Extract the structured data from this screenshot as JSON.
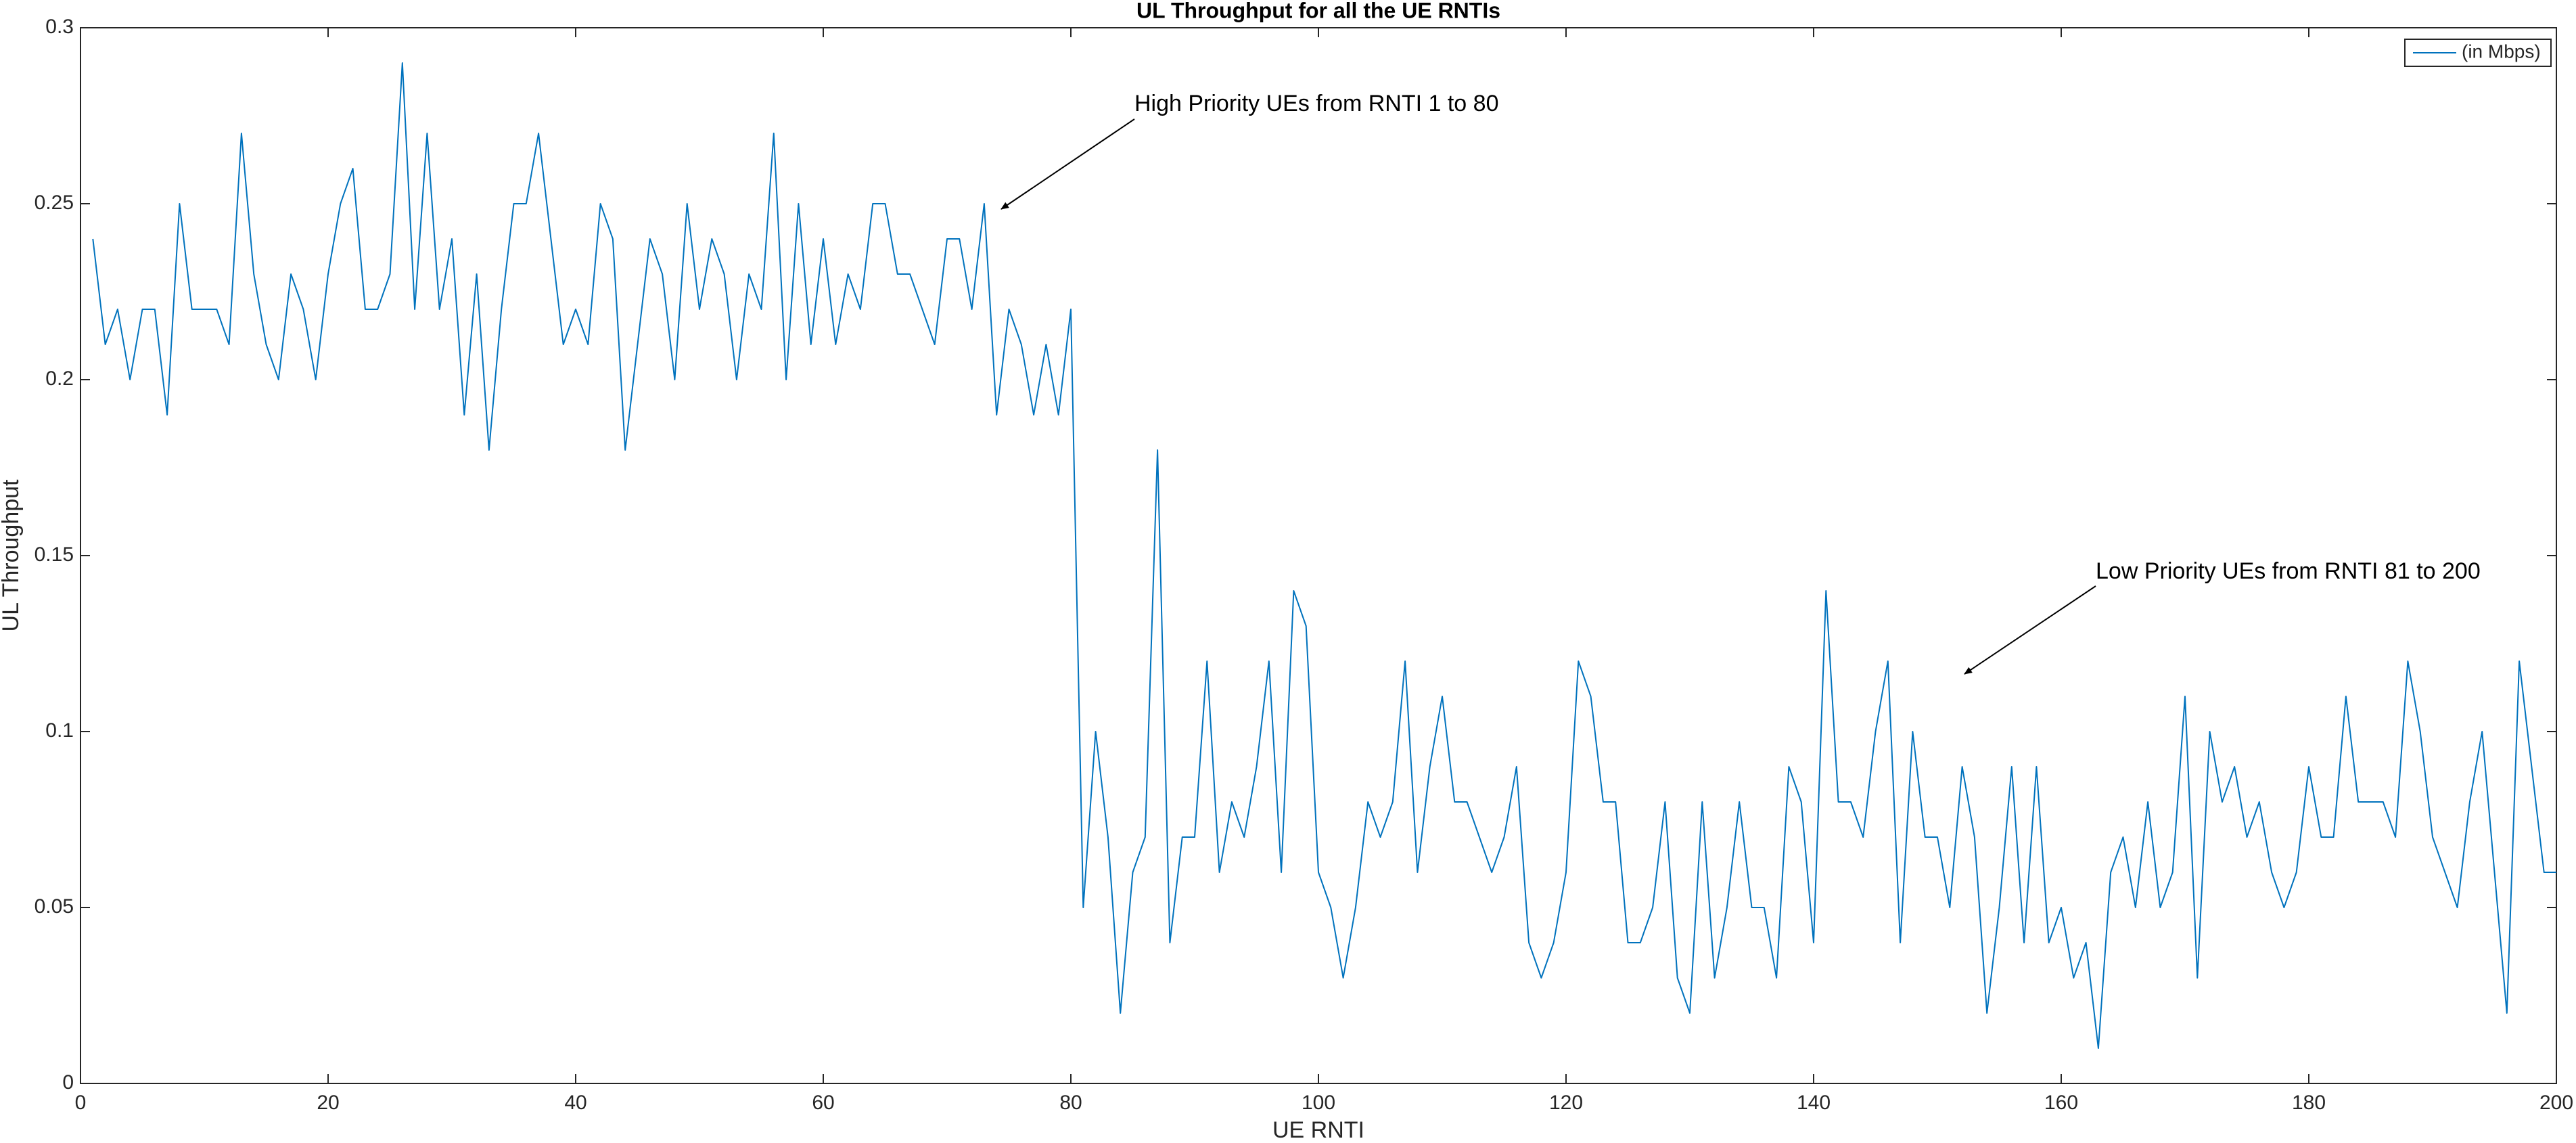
{
  "chart_data": {
    "type": "line",
    "title": "UL Throughput for all the UE RNTIs",
    "xlabel": "UE RNTI",
    "ylabel": "UL Throughput",
    "annotations": [
      "High Priority UEs from RNTI 1 to 80",
      "Low Priority UEs from RNTI 81 to 200"
    ],
    "x": [
      1,
      2,
      3,
      4,
      5,
      6,
      7,
      8,
      9,
      10,
      11,
      12,
      13,
      14,
      15,
      16,
      17,
      18,
      19,
      20,
      21,
      22,
      23,
      24,
      25,
      26,
      27,
      28,
      29,
      30,
      31,
      32,
      33,
      34,
      35,
      36,
      37,
      38,
      39,
      40,
      41,
      42,
      43,
      44,
      45,
      46,
      47,
      48,
      49,
      50,
      51,
      52,
      53,
      54,
      55,
      56,
      57,
      58,
      59,
      60,
      61,
      62,
      63,
      64,
      65,
      66,
      67,
      68,
      69,
      70,
      71,
      72,
      73,
      74,
      75,
      76,
      77,
      78,
      79,
      80,
      81,
      82,
      83,
      84,
      85,
      86,
      87,
      88,
      89,
      90,
      91,
      92,
      93,
      94,
      95,
      96,
      97,
      98,
      99,
      100,
      101,
      102,
      103,
      104,
      105,
      106,
      107,
      108,
      109,
      110,
      111,
      112,
      113,
      114,
      115,
      116,
      117,
      118,
      119,
      120,
      121,
      122,
      123,
      124,
      125,
      126,
      127,
      128,
      129,
      130,
      131,
      132,
      133,
      134,
      135,
      136,
      137,
      138,
      139,
      140,
      141,
      142,
      143,
      144,
      145,
      146,
      147,
      148,
      149,
      150,
      151,
      152,
      153,
      154,
      155,
      156,
      157,
      158,
      159,
      160,
      161,
      162,
      163,
      164,
      165,
      166,
      167,
      168,
      169,
      170,
      171,
      172,
      173,
      174,
      175,
      176,
      177,
      178,
      179,
      180,
      181,
      182,
      183,
      184,
      185,
      186,
      187,
      188,
      189,
      190,
      191,
      192,
      193,
      194,
      195,
      196,
      197,
      198,
      199,
      200
    ],
    "series": [
      {
        "name": "(in Mbps)",
        "color": "#0072bd",
        "values": [
          0.24,
          0.21,
          0.22,
          0.2,
          0.22,
          0.22,
          0.19,
          0.25,
          0.22,
          0.22,
          0.22,
          0.21,
          0.27,
          0.23,
          0.21,
          0.2,
          0.23,
          0.22,
          0.2,
          0.23,
          0.25,
          0.26,
          0.22,
          0.22,
          0.23,
          0.29,
          0.22,
          0.27,
          0.22,
          0.24,
          0.19,
          0.23,
          0.18,
          0.22,
          0.25,
          0.25,
          0.27,
          0.24,
          0.21,
          0.22,
          0.21,
          0.25,
          0.24,
          0.18,
          0.21,
          0.24,
          0.23,
          0.2,
          0.25,
          0.22,
          0.24,
          0.23,
          0.2,
          0.23,
          0.22,
          0.27,
          0.2,
          0.25,
          0.21,
          0.24,
          0.21,
          0.23,
          0.22,
          0.25,
          0.25,
          0.23,
          0.23,
          0.22,
          0.21,
          0.24,
          0.24,
          0.22,
          0.25,
          0.19,
          0.22,
          0.21,
          0.19,
          0.21,
          0.19,
          0.22,
          0.05,
          0.1,
          0.07,
          0.02,
          0.06,
          0.07,
          0.18,
          0.04,
          0.07,
          0.07,
          0.12,
          0.06,
          0.08,
          0.07,
          0.09,
          0.12,
          0.06,
          0.14,
          0.13,
          0.06,
          0.05,
          0.03,
          0.05,
          0.08,
          0.07,
          0.08,
          0.12,
          0.06,
          0.09,
          0.11,
          0.08,
          0.08,
          0.07,
          0.06,
          0.07,
          0.09,
          0.04,
          0.03,
          0.04,
          0.06,
          0.12,
          0.11,
          0.08,
          0.08,
          0.04,
          0.04,
          0.05,
          0.08,
          0.03,
          0.02,
          0.08,
          0.03,
          0.05,
          0.08,
          0.05,
          0.05,
          0.03,
          0.09,
          0.08,
          0.04,
          0.14,
          0.08,
          0.08,
          0.07,
          0.1,
          0.12,
          0.04,
          0.1,
          0.07,
          0.07,
          0.05,
          0.09,
          0.07,
          0.02,
          0.05,
          0.09,
          0.04,
          0.09,
          0.04,
          0.05,
          0.03,
          0.04,
          0.01,
          0.06,
          0.07,
          0.05,
          0.08,
          0.05,
          0.06,
          0.11,
          0.03,
          0.1,
          0.08,
          0.09,
          0.07,
          0.08,
          0.06,
          0.05,
          0.06,
          0.09,
          0.07,
          0.07,
          0.11,
          0.08,
          0.08,
          0.08,
          0.07,
          0.12,
          0.1,
          0.07,
          0.06,
          0.05,
          0.08,
          0.1,
          0.06,
          0.02,
          0.12,
          0.09,
          0.06,
          0.06
        ]
      }
    ],
    "xlim": [
      0,
      200
    ],
    "xticks": [
      0,
      20,
      40,
      60,
      80,
      100,
      120,
      140,
      160,
      180,
      200
    ],
    "ylim": [
      0,
      0.3
    ],
    "yticks": [
      0,
      0.05,
      0.1,
      0.15,
      0.2,
      0.25,
      0.3
    ],
    "grid": false,
    "legend": "northeast"
  }
}
